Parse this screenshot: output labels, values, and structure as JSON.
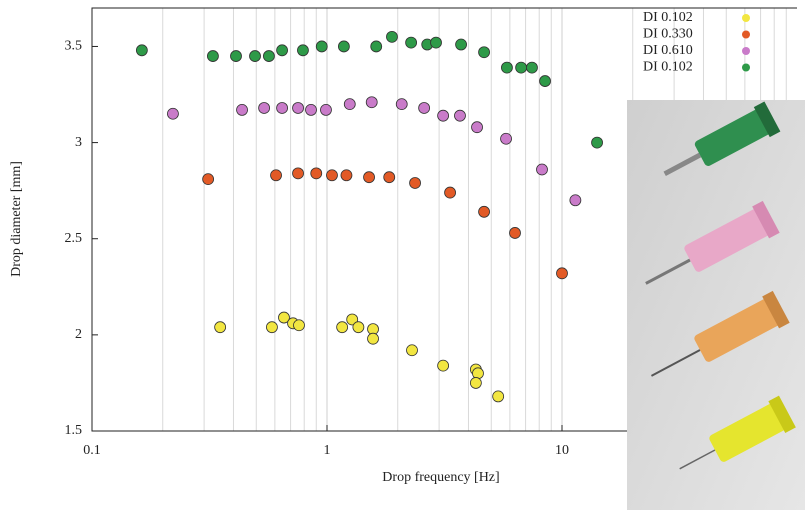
{
  "chart_data": {
    "type": "scatter",
    "xlabel": "Drop frequency [Hz]",
    "ylabel": "Drop diameter [mm]",
    "xscale": "log",
    "xlim": [
      0.1,
      100
    ],
    "xticks": [
      0.1,
      1,
      10
    ],
    "x_minor_ticks": [
      0.2,
      0.3,
      0.4,
      0.5,
      0.6,
      0.7,
      0.8,
      0.9,
      2,
      3,
      4,
      5,
      6,
      7,
      8,
      9,
      20,
      30,
      40,
      50,
      60,
      70,
      80,
      90
    ],
    "ylim": [
      1.5,
      3.7
    ],
    "yticks": [
      1.5,
      2,
      2.5,
      3,
      3.5
    ],
    "grid": "x",
    "legend": "top-right",
    "series": [
      {
        "name": "DI 0.102",
        "color": "#f2e641",
        "x": [
          0.351,
          0.583,
          0.656,
          0.717,
          0.76,
          1.16,
          1.28,
          1.36,
          1.57,
          1.57,
          2.3,
          3.12,
          4.3,
          4.39,
          4.3,
          5.35
        ],
        "values": [
          2.04,
          2.04,
          2.09,
          2.06,
          2.05,
          2.04,
          2.08,
          2.04,
          2.03,
          1.98,
          1.92,
          1.84,
          1.82,
          1.8,
          1.75,
          1.68
        ]
      },
      {
        "name": "DI 0.330",
        "color": "#e25a26",
        "x": [
          0.312,
          0.607,
          0.753,
          0.9,
          1.05,
          1.21,
          1.51,
          1.84,
          2.37,
          3.34,
          4.66,
          6.31,
          10.0
        ],
        "values": [
          2.81,
          2.83,
          2.84,
          2.84,
          2.83,
          2.83,
          2.82,
          2.82,
          2.79,
          2.74,
          2.64,
          2.53,
          2.32
        ]
      },
      {
        "name": "DI 0.610",
        "color": "#c97bc9",
        "x": [
          0.221,
          0.435,
          0.54,
          0.644,
          0.753,
          0.855,
          0.99,
          1.25,
          1.55,
          2.08,
          2.59,
          3.12,
          3.68,
          4.35,
          5.78,
          8.22,
          11.4
        ],
        "values": [
          3.15,
          3.17,
          3.18,
          3.18,
          3.18,
          3.17,
          3.17,
          3.2,
          3.21,
          3.2,
          3.18,
          3.14,
          3.14,
          3.08,
          3.02,
          2.86,
          2.7
        ]
      },
      {
        "name": "DI 0.102",
        "color": "#2e9a48",
        "x": [
          0.163,
          0.327,
          0.41,
          0.494,
          0.566,
          0.644,
          0.79,
          0.95,
          1.18,
          1.62,
          1.89,
          2.28,
          2.67,
          2.91,
          3.72,
          4.66,
          5.83,
          6.7,
          7.45,
          8.47,
          14.1
        ],
        "values": [
          3.48,
          3.45,
          3.45,
          3.45,
          3.45,
          3.48,
          3.48,
          3.5,
          3.5,
          3.5,
          3.55,
          3.52,
          3.51,
          3.52,
          3.51,
          3.47,
          3.39,
          3.39,
          3.39,
          3.32,
          3.0
        ]
      }
    ]
  }
}
